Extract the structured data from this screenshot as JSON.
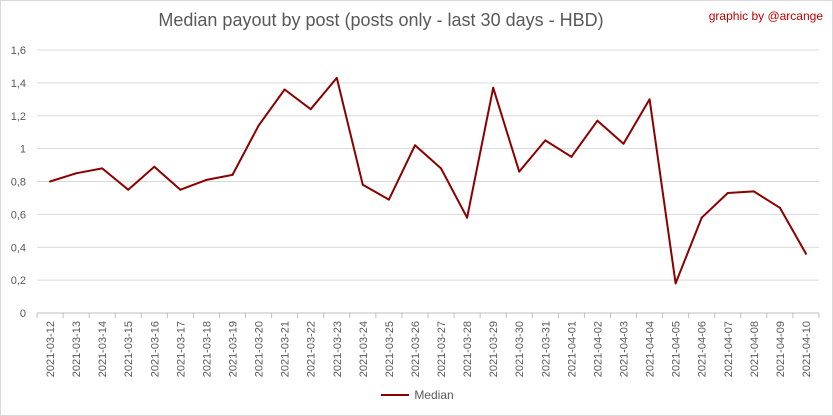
{
  "header": {
    "title": "Median payout by post (posts only - last 30 days - HBD)",
    "credit": "graphic by @arcange"
  },
  "chart_data": {
    "type": "line",
    "title": "Median payout by post (posts only - last 30 days - HBD)",
    "xlabel": "",
    "ylabel": "",
    "ylim": [
      0,
      1.6
    ],
    "y_ticks": [
      "0",
      "0,2",
      "0,4",
      "0,6",
      "0,8",
      "1",
      "1,2",
      "1,4",
      "1,6"
    ],
    "grid": "horizontal",
    "legend_position": "bottom",
    "categories": [
      "2021-03-12",
      "2021-03-13",
      "2021-03-14",
      "2021-03-15",
      "2021-03-16",
      "2021-03-17",
      "2021-03-18",
      "2021-03-19",
      "2021-03-20",
      "2021-03-21",
      "2021-03-22",
      "2021-03-23",
      "2021-03-24",
      "2021-03-25",
      "2021-03-26",
      "2021-03-27",
      "2021-03-28",
      "2021-03-29",
      "2021-03-30",
      "2021-03-31",
      "2021-04-01",
      "2021-04-02",
      "2021-04-03",
      "2021-04-04",
      "2021-04-05",
      "2021-04-06",
      "2021-04-07",
      "2021-04-08",
      "2021-04-09",
      "2021-04-10"
    ],
    "series": [
      {
        "name": "Median",
        "color": "#8b0000",
        "values": [
          0.8,
          0.85,
          0.88,
          0.75,
          0.89,
          0.75,
          0.81,
          0.84,
          1.14,
          1.36,
          1.24,
          1.43,
          0.78,
          0.69,
          1.02,
          0.88,
          0.58,
          1.37,
          0.86,
          1.05,
          0.95,
          1.17,
          1.03,
          1.3,
          0.18,
          0.58,
          0.73,
          0.74,
          0.64,
          0.36
        ]
      }
    ]
  }
}
